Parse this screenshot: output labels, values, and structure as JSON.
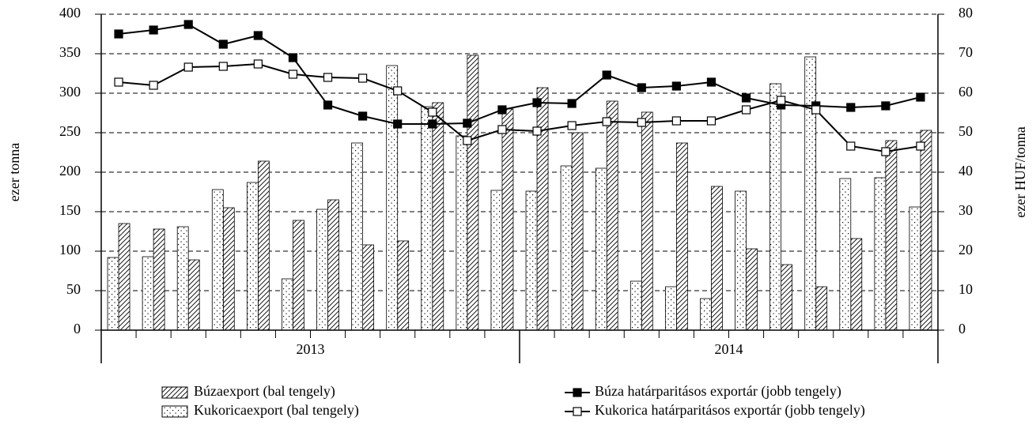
{
  "chart_data": {
    "type": "bar_line",
    "ylabel": "ezer tonna",
    "y2label": "ezer HUF/tonna",
    "categories": [
      null,
      null,
      null,
      null,
      null,
      null,
      null,
      null,
      null,
      null,
      null,
      null,
      null,
      null,
      null,
      null,
      null,
      null,
      null,
      null,
      null,
      null,
      null,
      null
    ],
    "groups": [
      "2013",
      "2014"
    ],
    "ylim": [
      0,
      400
    ],
    "yticks": [
      0,
      50,
      100,
      150,
      200,
      250,
      300,
      350,
      400
    ],
    "y2lim": [
      0,
      80
    ],
    "y2ticks": [
      0,
      10,
      20,
      30,
      40,
      50,
      60,
      70,
      80
    ],
    "grid": true,
    "series": [
      {
        "name": "Búzaexport (bal tengely)",
        "type": "bar",
        "fill": "hatch",
        "color": "#000",
        "values": [
          135,
          128,
          89,
          155,
          214,
          139,
          165,
          108,
          113,
          288,
          348,
          280,
          307,
          250,
          290,
          276,
          237,
          182,
          103,
          83,
          55,
          116,
          240,
          253
        ]
      },
      {
        "name": "Kukoricaexport (bal tengely)",
        "type": "bar",
        "fill": "dots",
        "color": "#000",
        "values": [
          92,
          93,
          131,
          178,
          187,
          65,
          153,
          237,
          335,
          283,
          246,
          177,
          176,
          208,
          205,
          62,
          55,
          40,
          176,
          312,
          346,
          192,
          193,
          156
        ]
      },
      {
        "name": "Búza határparitásos exportár (jobb tengely)",
        "type": "line",
        "axis": "y2",
        "marker": "filled",
        "color": "#000",
        "values": [
          75,
          76,
          77.4,
          72.4,
          74.6,
          69,
          57,
          54.2,
          52.2,
          52.2,
          52.4,
          55.8,
          57.6,
          57.4,
          64.6,
          61.4,
          61.8,
          62.8,
          58.8,
          57,
          56.8,
          56.4,
          56.8,
          59
        ]
      },
      {
        "name": "Kukorica határparitásos exportár (jobb tengely)",
        "type": "line",
        "axis": "y2",
        "marker": "open",
        "color": "#000",
        "values": [
          62.8,
          62,
          66.6,
          66.8,
          67.4,
          64.8,
          64,
          63.8,
          60.6,
          55.2,
          48,
          50.8,
          50.4,
          51.8,
          52.8,
          52.6,
          53,
          53,
          55.8,
          58.2,
          55.8,
          46.6,
          45.2,
          46.6
        ]
      }
    ]
  }
}
